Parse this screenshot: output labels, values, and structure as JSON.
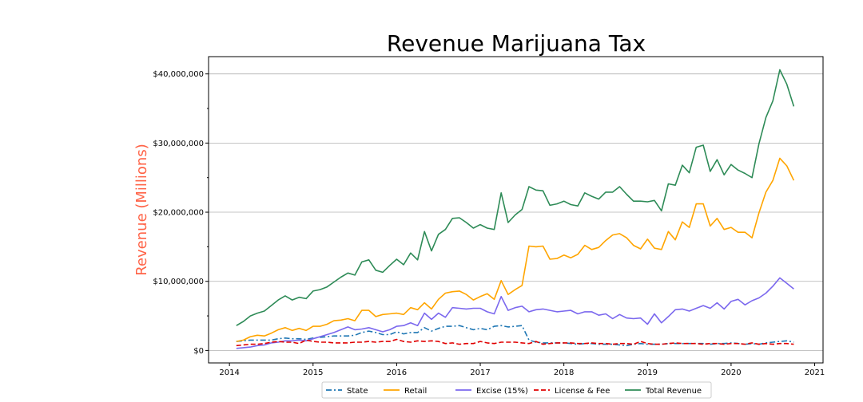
{
  "chart_data": {
    "type": "line",
    "title": "Revenue Marijuana Tax",
    "xlabel": "",
    "ylabel": "Revenue (Millions)",
    "xlim": [
      2013.75,
      2021.1
    ],
    "ylim": [
      -1800000,
      42500000
    ],
    "x_ticks": [
      2014,
      2015,
      2016,
      2017,
      2018,
      2019,
      2020,
      2021
    ],
    "x_tick_labels": [
      "2014",
      "2015",
      "2016",
      "2017",
      "2018",
      "2019",
      "2020",
      "2021"
    ],
    "y_ticks": [
      0,
      10000000,
      20000000,
      30000000,
      40000000
    ],
    "y_tick_labels": [
      "$0",
      "$10,000,000",
      "$20,000,000",
      "$30,000,000",
      "$40,000,000"
    ],
    "grid": "horizontal",
    "legend_position": "bottom-center",
    "x": [
      2014.083,
      2014.167,
      2014.25,
      2014.333,
      2014.417,
      2014.5,
      2014.583,
      2014.667,
      2014.75,
      2014.833,
      2014.917,
      2015.0,
      2015.083,
      2015.167,
      2015.25,
      2015.333,
      2015.417,
      2015.5,
      2015.583,
      2015.667,
      2015.75,
      2015.833,
      2015.917,
      2016.0,
      2016.083,
      2016.167,
      2016.25,
      2016.333,
      2016.417,
      2016.5,
      2016.583,
      2016.667,
      2016.75,
      2016.833,
      2016.917,
      2017.0,
      2017.083,
      2017.167,
      2017.25,
      2017.333,
      2017.417,
      2017.5,
      2017.583,
      2017.667,
      2017.75,
      2017.833,
      2017.917,
      2018.0,
      2018.083,
      2018.167,
      2018.25,
      2018.333,
      2018.417,
      2018.5,
      2018.583,
      2018.667,
      2018.75,
      2018.833,
      2018.917,
      2019.0,
      2019.083,
      2019.167,
      2019.25,
      2019.333,
      2019.417,
      2019.5,
      2019.583,
      2019.667,
      2019.75,
      2019.833,
      2019.917,
      2020.0,
      2020.083,
      2020.167,
      2020.25,
      2020.333,
      2020.417,
      2020.5,
      2020.583,
      2020.667,
      2020.75
    ],
    "series": [
      {
        "name": "State",
        "color": "#1f77b4",
        "dash": "dashdot",
        "values": [
          1.3,
          1.4,
          1.5,
          1.5,
          1.5,
          1.5,
          1.7,
          1.8,
          1.7,
          1.7,
          1.6,
          1.8,
          1.9,
          2.0,
          2.1,
          2.1,
          2.1,
          2.2,
          2.6,
          2.8,
          2.6,
          2.3,
          2.3,
          2.7,
          2.4,
          2.6,
          2.6,
          3.3,
          2.8,
          3.2,
          3.5,
          3.5,
          3.6,
          3.3,
          3.0,
          3.2,
          3.0,
          3.5,
          3.6,
          3.4,
          3.5,
          3.6,
          1.5,
          1.2,
          1.1,
          1.1,
          1.1,
          1.1,
          1.0,
          0.9,
          1.0,
          1.0,
          0.9,
          0.9,
          0.9,
          0.8,
          0.7,
          0.9,
          1.0,
          0.9,
          0.9,
          0.9,
          1.0,
          1.0,
          1.0,
          1.0,
          1.0,
          1.0,
          0.9,
          1.0,
          1.0,
          1.1,
          1.0,
          0.9,
          1.0,
          0.9,
          1.1,
          1.2,
          1.3,
          1.4,
          1.2
        ]
      },
      {
        "name": "Retail",
        "color": "#ffa500",
        "dash": "solid",
        "values": [
          1.3,
          1.5,
          2.0,
          2.2,
          2.1,
          2.5,
          3.0,
          3.3,
          2.9,
          3.2,
          2.9,
          3.5,
          3.5,
          3.8,
          4.3,
          4.4,
          4.6,
          4.3,
          5.8,
          5.8,
          4.9,
          5.2,
          5.3,
          5.4,
          5.2,
          6.2,
          5.9,
          6.9,
          6.0,
          7.4,
          8.3,
          8.5,
          8.6,
          8.1,
          7.3,
          7.8,
          8.2,
          7.4,
          10.1,
          8.1,
          8.8,
          9.4,
          15.1,
          15.0,
          15.1,
          13.2,
          13.3,
          13.8,
          13.4,
          13.9,
          15.2,
          14.6,
          14.9,
          15.9,
          16.7,
          16.9,
          16.3,
          15.2,
          14.7,
          16.1,
          14.8,
          14.6,
          17.2,
          16.0,
          18.6,
          17.8,
          21.2,
          21.2,
          18.0,
          19.1,
          17.5,
          17.8,
          17.1,
          17.1,
          16.3,
          19.9,
          22.9,
          24.6,
          27.8,
          26.7,
          24.6
        ]
      },
      {
        "name": "Excise (15%)",
        "color": "#7b68ee",
        "dash": "solid",
        "values": [
          0.3,
          0.4,
          0.5,
          0.7,
          0.8,
          1.1,
          1.2,
          1.4,
          1.4,
          1.5,
          1.4,
          1.7,
          2.0,
          2.3,
          2.6,
          3.0,
          3.4,
          3.0,
          3.1,
          3.3,
          3.0,
          2.7,
          3.0,
          3.5,
          3.6,
          4.0,
          3.6,
          5.4,
          4.5,
          5.4,
          4.8,
          6.2,
          6.1,
          6.0,
          6.1,
          6.1,
          5.6,
          5.3,
          7.8,
          5.8,
          6.2,
          6.4,
          5.6,
          5.9,
          6.0,
          5.8,
          5.6,
          5.7,
          5.8,
          5.3,
          5.6,
          5.6,
          5.1,
          5.3,
          4.6,
          5.2,
          4.7,
          4.6,
          4.7,
          3.8,
          5.3,
          4.0,
          4.9,
          5.9,
          6.0,
          5.7,
          6.1,
          6.5,
          6.1,
          6.9,
          6.0,
          7.1,
          7.4,
          6.6,
          7.2,
          7.6,
          8.3,
          9.3,
          10.5,
          9.7,
          8.9
        ]
      },
      {
        "name": "License & Fee",
        "color": "#e00000",
        "dash": "dashed",
        "values": [
          0.7,
          0.8,
          0.9,
          0.9,
          1.0,
          1.2,
          1.3,
          1.2,
          1.2,
          1.0,
          1.5,
          1.3,
          1.2,
          1.2,
          1.1,
          1.1,
          1.1,
          1.2,
          1.2,
          1.3,
          1.2,
          1.3,
          1.3,
          1.6,
          1.3,
          1.2,
          1.4,
          1.3,
          1.4,
          1.3,
          1.0,
          1.1,
          0.9,
          1.0,
          1.0,
          1.3,
          1.1,
          1.0,
          1.2,
          1.2,
          1.2,
          1.1,
          1.0,
          1.3,
          0.9,
          1.0,
          1.1,
          1.1,
          1.1,
          1.0,
          1.0,
          1.1,
          1.0,
          1.0,
          0.9,
          1.0,
          1.0,
          0.9,
          1.3,
          1.0,
          0.9,
          0.9,
          1.0,
          1.1,
          1.0,
          1.0,
          1.0,
          0.9,
          1.0,
          1.0,
          0.9,
          1.0,
          1.0,
          0.9,
          1.1,
          0.9,
          1.0,
          0.9,
          1.0,
          1.0,
          0.9
        ]
      },
      {
        "name": "Total Revenue",
        "color": "#2e8b57",
        "dash": "solid",
        "values": [
          3.6,
          4.2,
          5.0,
          5.4,
          5.7,
          6.5,
          7.3,
          7.9,
          7.3,
          7.7,
          7.5,
          8.6,
          8.8,
          9.2,
          9.9,
          10.6,
          11.2,
          10.9,
          12.8,
          13.1,
          11.6,
          11.3,
          12.3,
          13.2,
          12.4,
          14.1,
          13.1,
          17.2,
          14.4,
          16.8,
          17.5,
          19.1,
          19.2,
          18.5,
          17.7,
          18.2,
          17.7,
          17.5,
          22.8,
          18.5,
          19.6,
          20.4,
          23.7,
          23.2,
          23.1,
          21.0,
          21.2,
          21.6,
          21.1,
          20.9,
          22.8,
          22.3,
          21.9,
          22.9,
          22.9,
          23.7,
          22.6,
          21.6,
          21.6,
          21.5,
          21.7,
          20.2,
          24.1,
          23.9,
          26.8,
          25.7,
          29.4,
          29.7,
          25.9,
          27.6,
          25.4,
          26.9,
          26.1,
          25.6,
          25.0,
          29.9,
          33.7,
          36.1,
          40.6,
          38.5,
          35.3
        ]
      }
    ],
    "value_scale": 1000000
  }
}
